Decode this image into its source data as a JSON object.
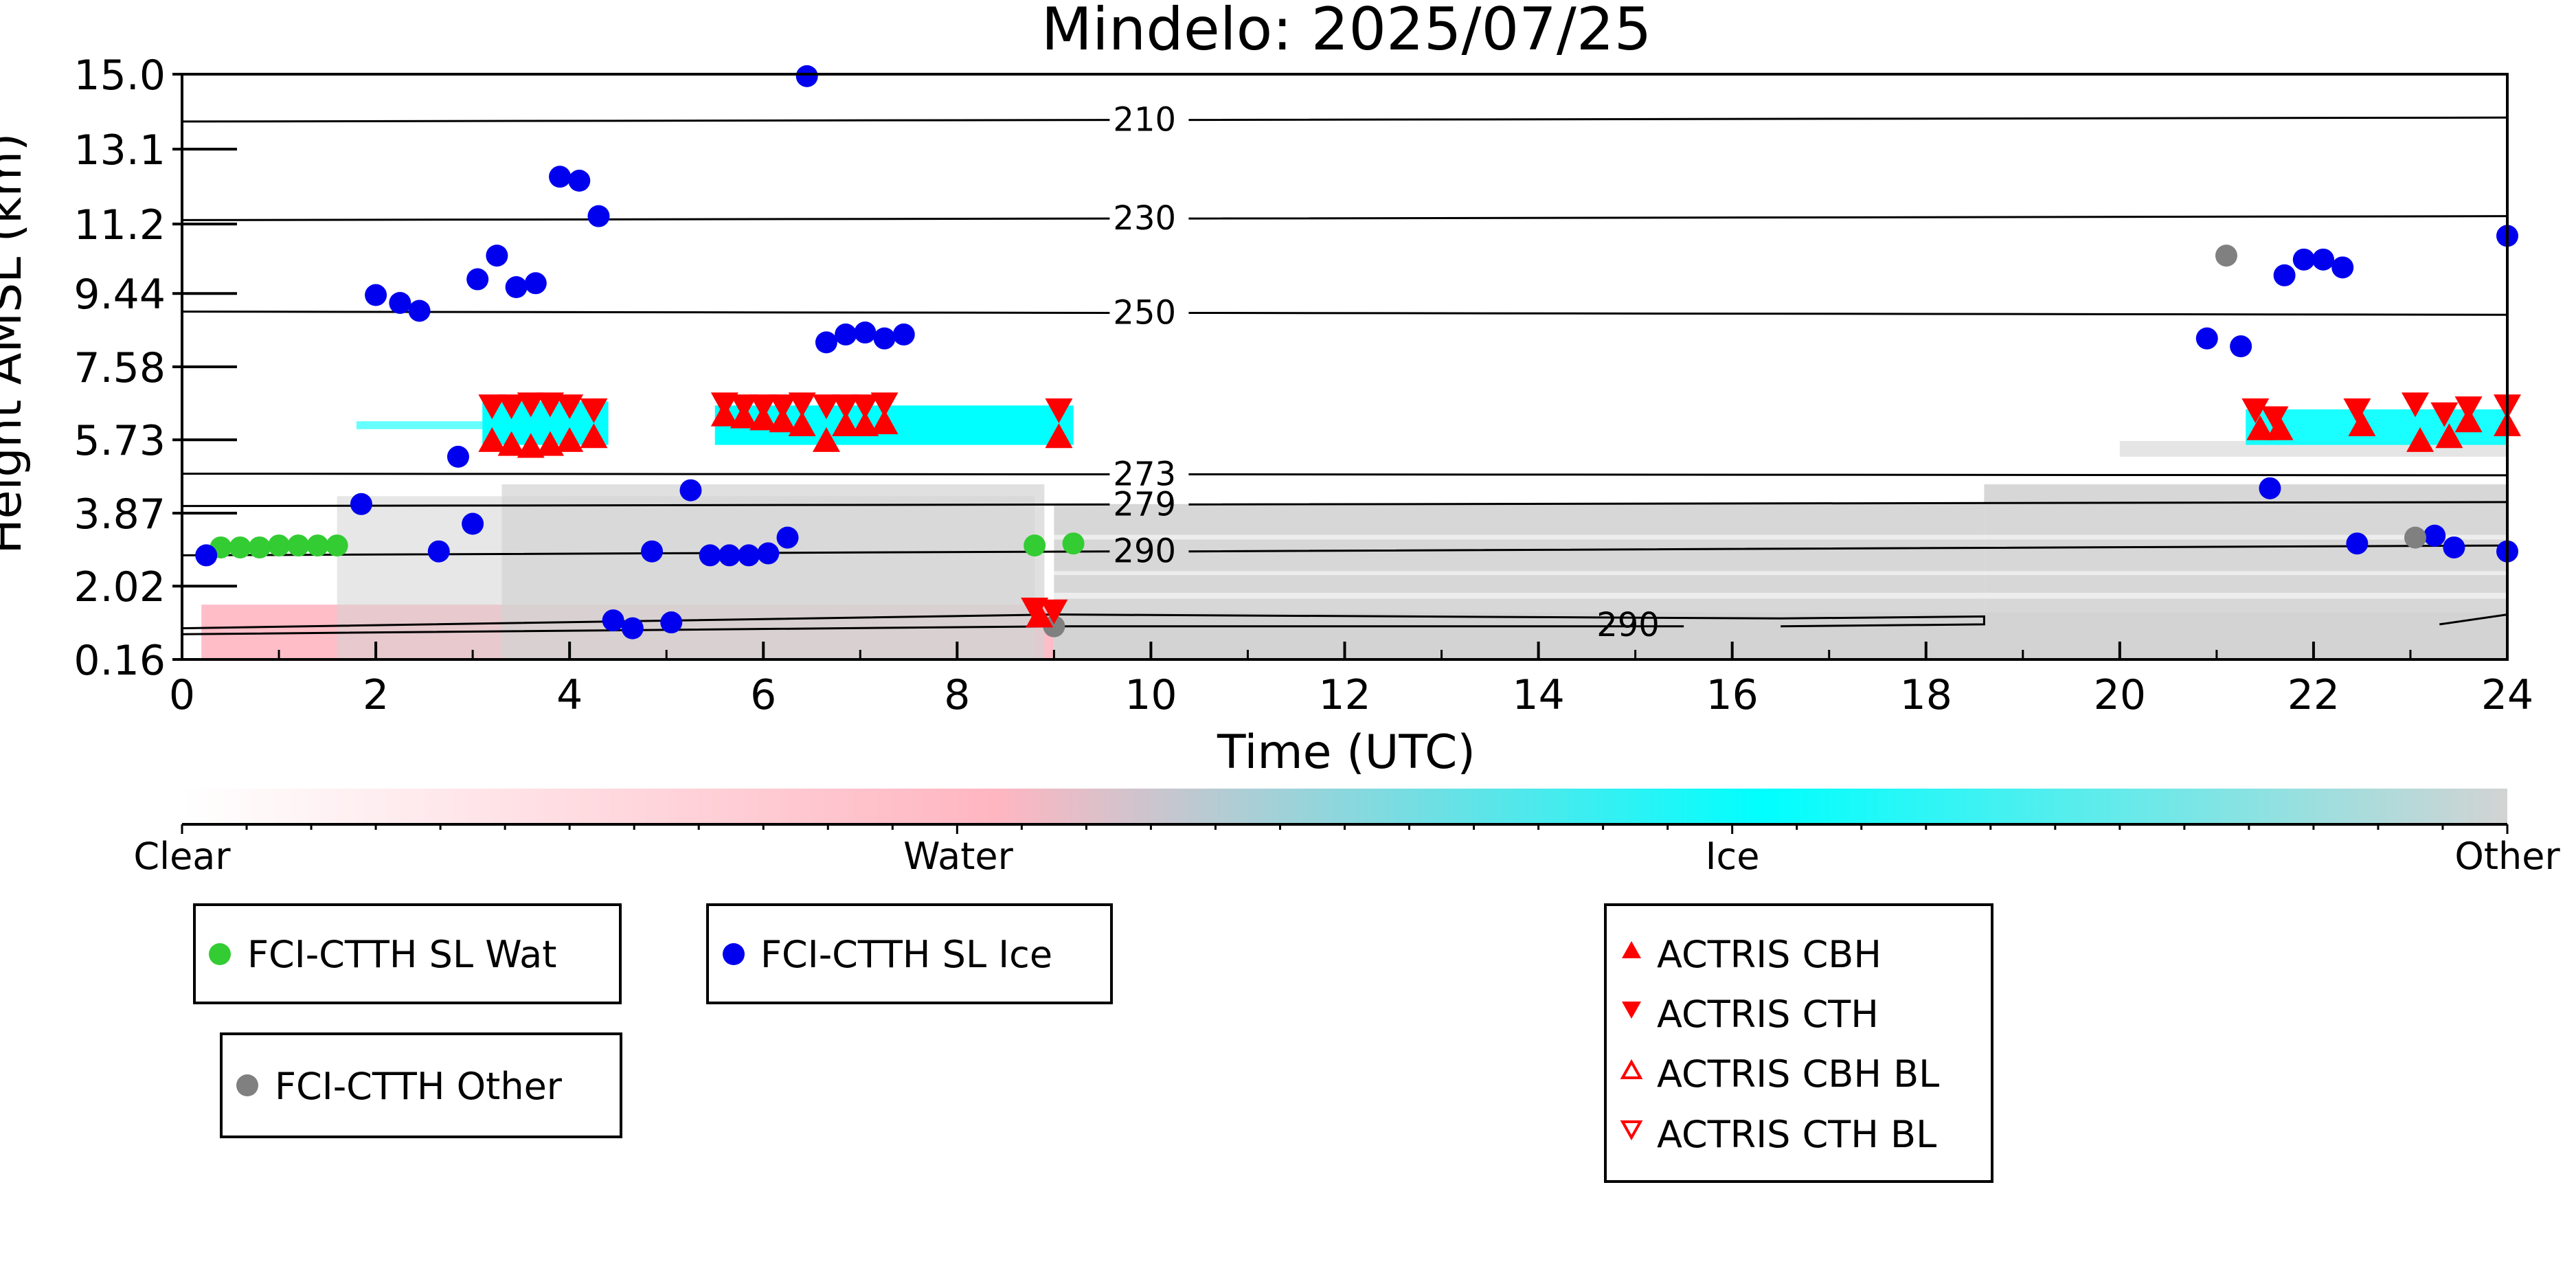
{
  "chart_data": {
    "type": "scatter",
    "title": "Mindelo: 2025/07/25",
    "xlabel": "Time (UTC)",
    "ylabel": "Height AMSL (km)",
    "xlim": [
      0,
      24
    ],
    "ylim": [
      0.16,
      15.0
    ],
    "xticks": [
      "0",
      "2",
      "4",
      "6",
      "8",
      "10",
      "12",
      "14",
      "16",
      "18",
      "20",
      "22",
      "24"
    ],
    "yticks": [
      "0.16",
      "2.02",
      "3.87",
      "5.73",
      "7.58",
      "9.44",
      "11.2",
      "13.1",
      "15.0"
    ],
    "colorbar": {
      "labels": [
        "Clear",
        "Water",
        "Ice",
        "Other"
      ],
      "colors": [
        "#ffffff",
        "#ffb6c1",
        "#00ffff",
        "#d3d3d3"
      ]
    },
    "temperature_contours": [
      {
        "label": "210",
        "y_start": 13.8,
        "y_end": 13.9
      },
      {
        "label": "230",
        "y_start": 11.3,
        "y_end": 11.4
      },
      {
        "label": "250",
        "y_start": 8.98,
        "y_end": 8.9
      },
      {
        "label": "273",
        "y_start": 4.87,
        "y_end": 4.83
      },
      {
        "label": "279",
        "y_start": 4.05,
        "y_end": 4.15
      },
      {
        "label": "290",
        "y_start": 2.8,
        "y_end": 3.05
      }
    ],
    "surface_contour_label": "290",
    "series": [
      {
        "name": "FCI-CTTH SL Wat",
        "color": "#33cc33",
        "marker": "circle",
        "points": [
          [
            0.4,
            3.0
          ],
          [
            0.6,
            3.0
          ],
          [
            0.8,
            3.0
          ],
          [
            1.0,
            3.05
          ],
          [
            1.2,
            3.05
          ],
          [
            1.4,
            3.05
          ],
          [
            1.6,
            3.05
          ],
          [
            8.8,
            3.05
          ],
          [
            9.2,
            3.1
          ]
        ]
      },
      {
        "name": "FCI-CTTH SL Ice",
        "color": "#0000ee",
        "marker": "circle",
        "points": [
          [
            0.25,
            2.8
          ],
          [
            1.85,
            4.1
          ],
          [
            2.0,
            9.4
          ],
          [
            2.25,
            9.2
          ],
          [
            2.45,
            9.0
          ],
          [
            2.65,
            2.9
          ],
          [
            2.85,
            5.3
          ],
          [
            3.0,
            3.6
          ],
          [
            3.05,
            9.8
          ],
          [
            3.25,
            10.4
          ],
          [
            3.45,
            9.6
          ],
          [
            3.65,
            9.7
          ],
          [
            3.9,
            12.4
          ],
          [
            4.1,
            12.3
          ],
          [
            4.3,
            11.4
          ],
          [
            4.45,
            1.15
          ],
          [
            4.65,
            0.95
          ],
          [
            4.85,
            2.9
          ],
          [
            5.05,
            1.1
          ],
          [
            5.25,
            4.45
          ],
          [
            5.45,
            2.8
          ],
          [
            5.65,
            2.8
          ],
          [
            5.85,
            2.8
          ],
          [
            6.05,
            2.85
          ],
          [
            6.25,
            3.25
          ],
          [
            6.45,
            14.95
          ],
          [
            6.65,
            8.2
          ],
          [
            6.85,
            8.4
          ],
          [
            7.05,
            8.45
          ],
          [
            7.25,
            8.3
          ],
          [
            7.45,
            8.4
          ],
          [
            20.9,
            8.3
          ],
          [
            21.25,
            8.1
          ],
          [
            21.55,
            4.5
          ],
          [
            21.7,
            9.9
          ],
          [
            21.9,
            10.3
          ],
          [
            22.1,
            10.3
          ],
          [
            22.3,
            10.1
          ],
          [
            22.45,
            3.1
          ],
          [
            23.25,
            3.3
          ],
          [
            23.45,
            3.0
          ],
          [
            24.0,
            2.9
          ],
          [
            24.0,
            10.9
          ]
        ]
      },
      {
        "name": "FCI-CTTH Other",
        "color": "#808080",
        "marker": "circle",
        "points": [
          [
            9.0,
            1.0
          ],
          [
            21.1,
            10.4
          ],
          [
            23.05,
            3.25
          ]
        ]
      },
      {
        "name": "ACTRIS CBH",
        "color": "#ff0000",
        "marker": "triangle-up",
        "points": [
          [
            3.2,
            5.7
          ],
          [
            3.4,
            5.6
          ],
          [
            3.6,
            5.55
          ],
          [
            3.8,
            5.6
          ],
          [
            4.0,
            5.7
          ],
          [
            4.25,
            5.8
          ],
          [
            5.6,
            6.35
          ],
          [
            5.8,
            6.3
          ],
          [
            6.0,
            6.25
          ],
          [
            6.2,
            6.2
          ],
          [
            6.4,
            6.1
          ],
          [
            6.65,
            5.7
          ],
          [
            6.85,
            6.1
          ],
          [
            7.05,
            6.1
          ],
          [
            7.25,
            6.15
          ],
          [
            8.85,
            1.25
          ],
          [
            9.05,
            5.8
          ],
          [
            21.45,
            6.0
          ],
          [
            21.65,
            6.0
          ],
          [
            22.5,
            6.1
          ],
          [
            23.1,
            5.7
          ],
          [
            23.4,
            5.8
          ],
          [
            23.6,
            6.2
          ],
          [
            24.0,
            6.1
          ]
        ]
      },
      {
        "name": "ACTRIS CTH",
        "color": "#ff0000",
        "marker": "triangle-down",
        "points": [
          [
            3.2,
            6.6
          ],
          [
            3.4,
            6.6
          ],
          [
            3.6,
            6.65
          ],
          [
            3.8,
            6.65
          ],
          [
            4.0,
            6.6
          ],
          [
            4.25,
            6.5
          ],
          [
            5.6,
            6.65
          ],
          [
            5.8,
            6.6
          ],
          [
            6.0,
            6.6
          ],
          [
            6.2,
            6.6
          ],
          [
            6.4,
            6.65
          ],
          [
            6.65,
            6.6
          ],
          [
            6.85,
            6.6
          ],
          [
            7.05,
            6.6
          ],
          [
            7.25,
            6.65
          ],
          [
            8.8,
            1.45
          ],
          [
            9.0,
            1.4
          ],
          [
            9.05,
            6.5
          ],
          [
            21.4,
            6.5
          ],
          [
            21.6,
            6.3
          ],
          [
            22.45,
            6.5
          ],
          [
            23.05,
            6.65
          ],
          [
            23.35,
            6.4
          ],
          [
            23.6,
            6.55
          ],
          [
            24.0,
            6.6
          ]
        ]
      },
      {
        "name": "ACTRIS CBH BL",
        "color": "#ff0000",
        "marker": "triangle-up-open",
        "points": []
      },
      {
        "name": "ACTRIS CTH BL",
        "color": "#ff0000",
        "marker": "triangle-down-open",
        "points": []
      }
    ],
    "legend_placement": "below"
  }
}
